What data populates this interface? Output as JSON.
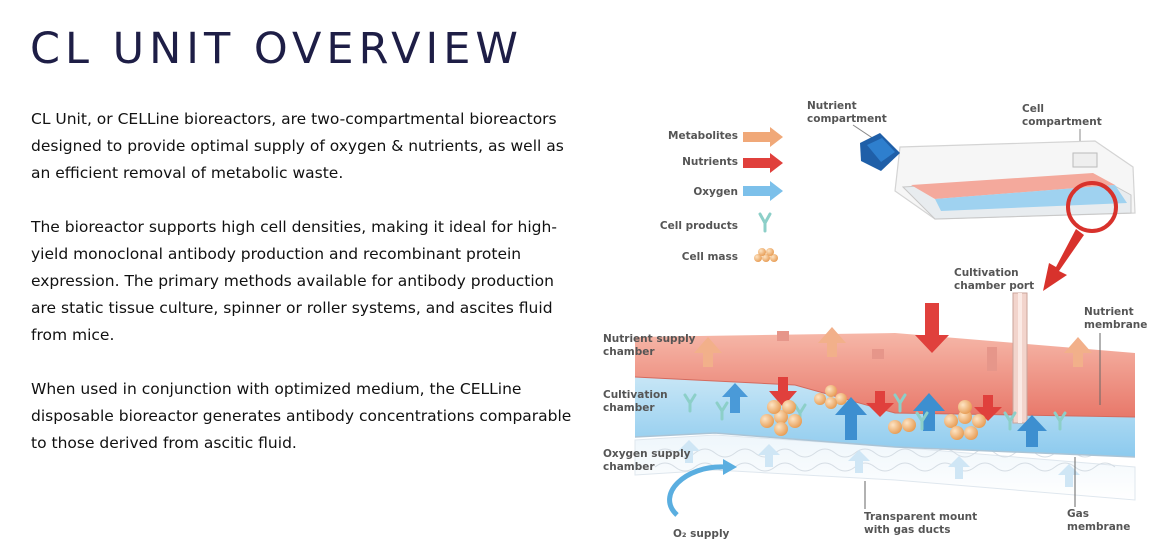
{
  "title": "CL UNIT OVERVIEW",
  "paragraphs": [
    "CL Unit, or CELLine bioreactors, are two-compartmental bioreactors designed to provide optimal supply of oxygen & nutrients, as well as an efficient removal of metabolic waste.",
    " The bioreactor supports high cell densities, making it ideal for high-yield monoclonal antibody production and recombinant protein expression. The primary methods available for antibody production are static tissue culture, spinner or roller systems, and ascites fluid from mice.",
    "When used in conjunction with optimized medium, the CELLine disposable bioreactor generates antibody concentrations comparable to those derived from ascitic fluid."
  ],
  "diagram": {
    "legend": {
      "metabolites": "Metabolites",
      "nutrients": "Nutrients",
      "oxygen": "Oxygen",
      "cell_products": "Cell products",
      "cell_mass": "Cell mass"
    },
    "labels": {
      "nutrient_compartment_1": "Nutrient",
      "nutrient_compartment_2": "compartment",
      "cell_compartment_1": "Cell",
      "cell_compartment_2": "compartment",
      "cultivation_port_1": "Cultivation",
      "cultivation_port_2": "chamber port",
      "nutrient_membrane_1": "Nutrient",
      "nutrient_membrane_2": "membrane",
      "nutrient_supply_1": "Nutrient supply",
      "nutrient_supply_2": "chamber",
      "cultivation_chamber_1": "Cultivation",
      "cultivation_chamber_2": "chamber",
      "oxygen_supply_1": "Oxygen supply",
      "oxygen_supply_2": "chamber",
      "o2_supply": "O₂ supply",
      "transparent_mount_1": "Transparent mount",
      "transparent_mount_2": "with gas ducts",
      "gas_membrane_1": "Gas",
      "gas_membrane_2": "membrane"
    },
    "colors": {
      "metabolites": "#f0a878",
      "nutrients": "#e0403c",
      "oxygen": "#5aaee0",
      "cell_products": "#8ccfc8",
      "cell_mass": "#f2b878",
      "red_arrow": "#d8322c"
    }
  }
}
